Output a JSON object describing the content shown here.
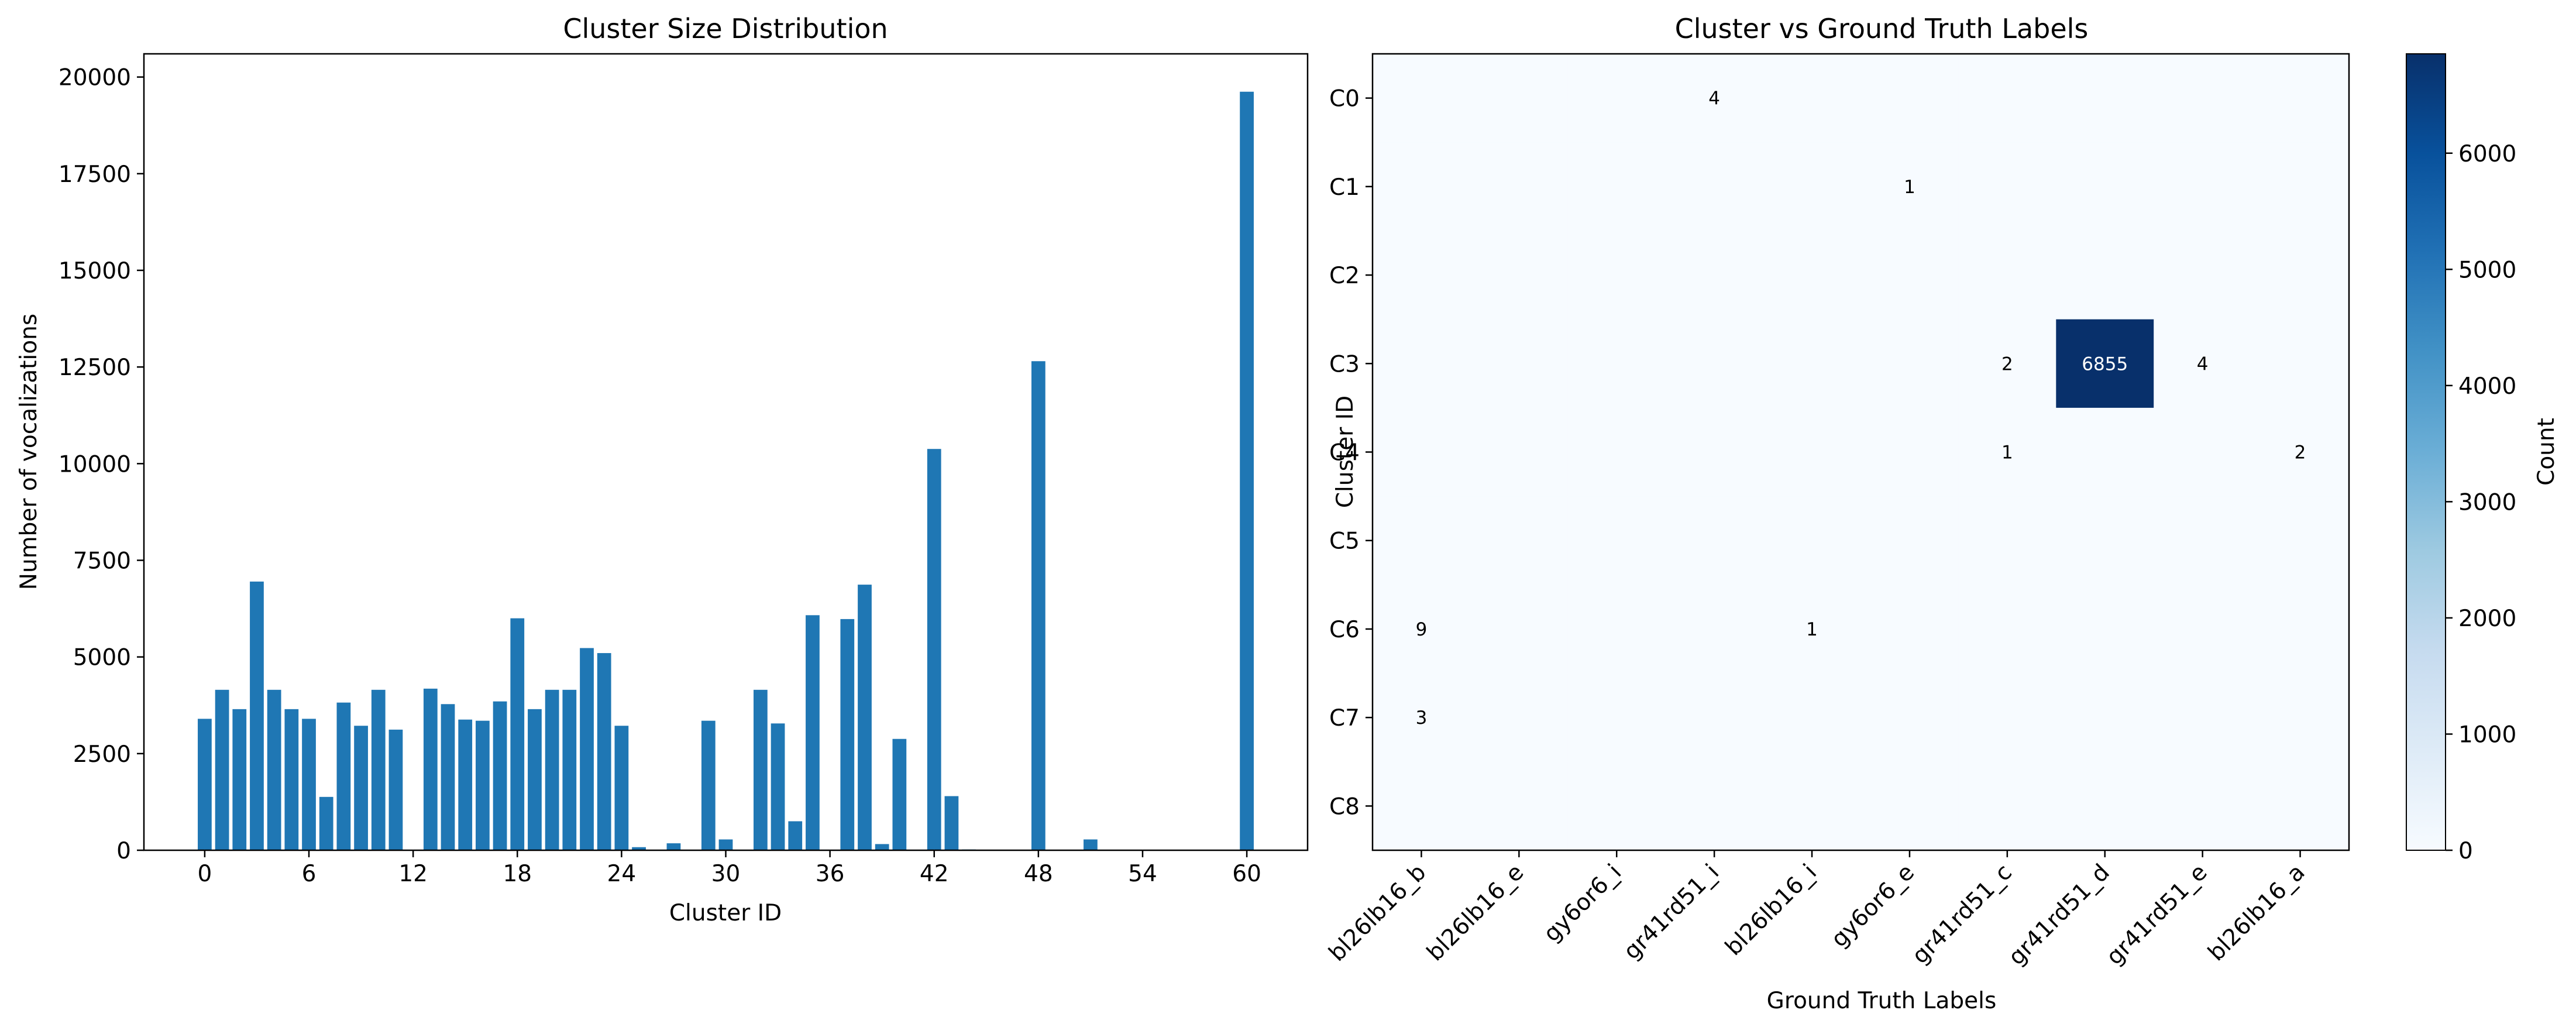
{
  "chart_data": [
    {
      "type": "bar",
      "title": "Cluster Size Distribution",
      "xlabel": "Cluster ID",
      "ylabel": "Number of vocalizations",
      "xlim": [
        -3.5,
        63.5
      ],
      "ylim": [
        0,
        20600
      ],
      "xticks": [
        0,
        6,
        12,
        18,
        24,
        30,
        36,
        42,
        48,
        54,
        60
      ],
      "yticks": [
        0,
        2500,
        5000,
        7500,
        10000,
        12500,
        15000,
        17500,
        20000
      ],
      "grid": false,
      "color": "#1f77b4",
      "x": [
        0,
        1,
        2,
        3,
        4,
        5,
        6,
        7,
        8,
        9,
        10,
        11,
        12,
        13,
        14,
        15,
        16,
        17,
        18,
        19,
        20,
        21,
        22,
        23,
        24,
        25,
        26,
        27,
        28,
        29,
        30,
        31,
        32,
        33,
        34,
        35,
        36,
        37,
        38,
        39,
        40,
        41,
        42,
        43,
        44,
        45,
        46,
        47,
        48,
        49,
        50,
        51,
        52,
        53,
        54,
        55,
        56,
        57,
        58,
        59,
        60
      ],
      "values": [
        3400,
        4150,
        3650,
        6950,
        4150,
        3650,
        3400,
        1380,
        3820,
        3220,
        4150,
        3120,
        0,
        4180,
        3780,
        3380,
        3350,
        3850,
        6000,
        3650,
        4150,
        4150,
        5230,
        5100,
        3220,
        80,
        0,
        180,
        0,
        3350,
        280,
        0,
        4150,
        3280,
        750,
        6080,
        0,
        5980,
        6870,
        160,
        2880,
        0,
        10380,
        1400,
        20,
        0,
        0,
        0,
        12650,
        0,
        0,
        280,
        0,
        0,
        0,
        0,
        0,
        10,
        0,
        0,
        19620
      ]
    },
    {
      "type": "heatmap",
      "title": "Cluster vs Ground Truth Labels",
      "xlabel": "Ground Truth Labels",
      "ylabel": "Cluster ID",
      "x_categories": [
        "bl26lb16_b",
        "bl26lb16_e",
        "gy6or6_i",
        "gr41rd51_i",
        "bl26lb16_i",
        "gy6or6_e",
        "gr41rd51_c",
        "gr41rd51_d",
        "gr41rd51_e",
        "bl26lb16_a"
      ],
      "y_categories": [
        "C0",
        "C1",
        "C2",
        "C3",
        "C4",
        "C5",
        "C6",
        "C7",
        "C8"
      ],
      "values": [
        [
          0,
          0,
          0,
          4,
          0,
          0,
          0,
          0,
          0,
          0
        ],
        [
          0,
          0,
          0,
          0,
          0,
          1,
          0,
          0,
          0,
          0
        ],
        [
          0,
          0,
          0,
          0,
          0,
          0,
          0,
          0,
          0,
          0
        ],
        [
          0,
          0,
          0,
          0,
          0,
          0,
          2,
          6855,
          4,
          0
        ],
        [
          0,
          0,
          0,
          0,
          0,
          0,
          1,
          0,
          0,
          2
        ],
        [
          0,
          0,
          0,
          0,
          0,
          0,
          0,
          0,
          0,
          0
        ],
        [
          9,
          0,
          0,
          0,
          1,
          0,
          0,
          0,
          0,
          0
        ],
        [
          3,
          0,
          0,
          0,
          0,
          0,
          0,
          0,
          0,
          0
        ],
        [
          0,
          0,
          0,
          0,
          0,
          0,
          0,
          0,
          0,
          0
        ]
      ],
      "colormap": "Blues",
      "colorbar": {
        "label": "Count",
        "range": [
          0,
          6855
        ],
        "ticks": [
          0,
          1000,
          2000,
          3000,
          4000,
          5000,
          6000
        ]
      }
    }
  ]
}
